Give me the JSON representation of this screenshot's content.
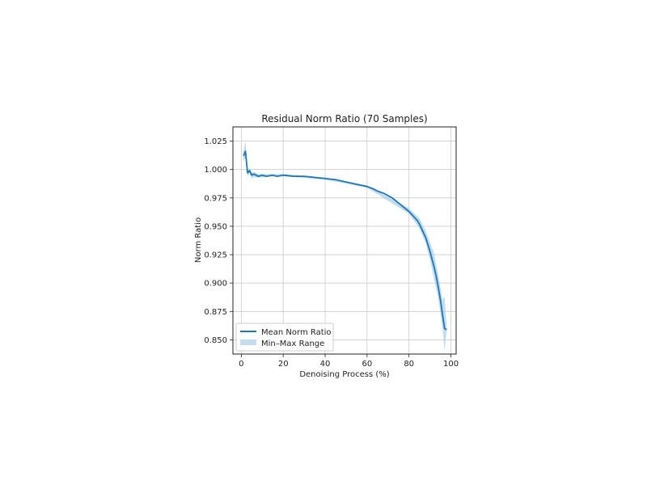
{
  "chart_data": {
    "type": "line",
    "title": "Residual Norm Ratio (70 Samples)",
    "xlabel": "Denoising Process (%)",
    "ylabel": "Norm Ratio",
    "xlim": [
      -4,
      102.5
    ],
    "ylim": [
      0.8375,
      1.0375
    ],
    "xticks": [
      0,
      20,
      40,
      60,
      80,
      100
    ],
    "yticks": [
      0.85,
      0.875,
      0.9,
      0.925,
      0.95,
      0.975,
      1.0,
      1.025
    ],
    "xtick_labels": [
      "0",
      "20",
      "40",
      "60",
      "80",
      "100"
    ],
    "ytick_labels": [
      "0.850",
      "0.875",
      "0.900",
      "0.925",
      "0.950",
      "0.975",
      "1.000",
      "1.025"
    ],
    "grid": true,
    "legend_position": "lower-left",
    "colors": {
      "line": "#1f77b4",
      "band": "#a8cfe8",
      "grid": "#cccccc",
      "axes": "#222222"
    },
    "series": [
      {
        "name": "Mean Norm Ratio",
        "kind": "line",
        "x": [
          1,
          2,
          3,
          4,
          5,
          6,
          8,
          10,
          12,
          15,
          17,
          20,
          25,
          30,
          35,
          40,
          45,
          50,
          55,
          60,
          63,
          65,
          68,
          70,
          72,
          74,
          76,
          78,
          80,
          82,
          84,
          85,
          86,
          87,
          88,
          89,
          90,
          91,
          92,
          93,
          94,
          95,
          96,
          97,
          98
        ],
        "y": [
          1.012,
          1.016,
          0.997,
          0.999,
          0.995,
          0.996,
          0.994,
          0.995,
          0.994,
          0.995,
          0.994,
          0.995,
          0.994,
          0.994,
          0.993,
          0.992,
          0.991,
          0.989,
          0.987,
          0.985,
          0.983,
          0.981,
          0.979,
          0.977,
          0.975,
          0.972,
          0.969,
          0.966,
          0.963,
          0.959,
          0.955,
          0.952,
          0.948,
          0.944,
          0.94,
          0.934,
          0.928,
          0.921,
          0.914,
          0.906,
          0.896,
          0.885,
          0.872,
          0.86,
          0.859
        ]
      },
      {
        "name": "Min–Max Range",
        "kind": "band",
        "x": [
          1,
          2,
          3,
          4,
          5,
          6,
          8,
          10,
          15,
          20,
          40,
          60,
          80,
          85,
          88,
          90,
          92,
          94,
          95,
          96,
          97,
          98
        ],
        "min": [
          1.008,
          1.01,
          0.994,
          0.996,
          0.992,
          0.993,
          0.993,
          0.993,
          0.994,
          0.994,
          0.991,
          0.984,
          0.961,
          0.948,
          0.935,
          0.921,
          0.903,
          0.887,
          0.872,
          0.86,
          0.84,
          0.858
        ],
        "max": [
          1.016,
          1.025,
          1.0,
          1.001,
          0.997,
          0.998,
          0.996,
          0.996,
          0.996,
          0.996,
          0.993,
          0.986,
          0.966,
          0.957,
          0.946,
          0.936,
          0.926,
          0.907,
          0.896,
          0.885,
          0.888,
          0.861
        ]
      }
    ]
  }
}
